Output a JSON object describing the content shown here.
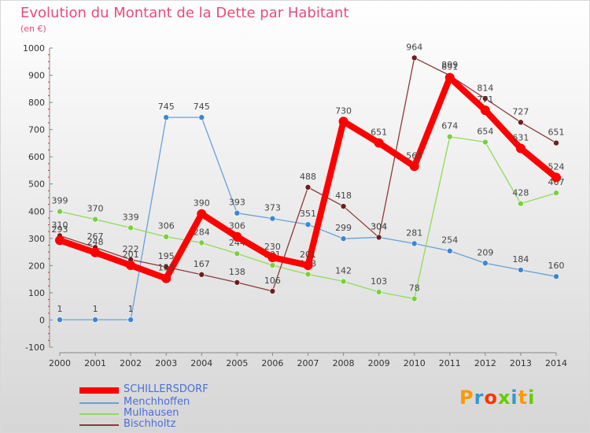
{
  "chart_title": "Evolution du Montant de la Dette par Habitant",
  "chart_unit": "(en €)",
  "brand": {
    "logo_text": "Proxiti",
    "colors": [
      "#ff9900",
      "#3399cc",
      "#ff3300",
      "#66cc00",
      "#3399cc",
      "#ff9900",
      "#66cc00"
    ]
  },
  "chart_data": {
    "type": "line",
    "title": "Evolution du Montant de la Dette par Habitant",
    "ylabel": "(en €)",
    "x": [
      2000,
      2001,
      2002,
      2003,
      2004,
      2005,
      2006,
      2007,
      2008,
      2009,
      2010,
      2011,
      2012,
      2013,
      2014
    ],
    "ylim": [
      -100,
      1000
    ],
    "yticks": [
      -100,
      0,
      100,
      200,
      300,
      400,
      500,
      600,
      700,
      800,
      900,
      1000
    ],
    "grid": false,
    "legend_position": "bottom-left",
    "series": [
      {
        "name": "Menchhoffen",
        "color": "#6aa0d8",
        "values": [
          1,
          1,
          1,
          745,
          745,
          393,
          373,
          351,
          299,
          304,
          281,
          254,
          209,
          184,
          160
        ]
      },
      {
        "name": "Mulhausen",
        "color": "#8fdc5a",
        "values": [
          399,
          370,
          339,
          306,
          284,
          244,
          201,
          168,
          142,
          103,
          78,
          674,
          654,
          428,
          467
        ]
      },
      {
        "name": "Bischholtz",
        "color": "#8a3a3a",
        "values": [
          310,
          267,
          222,
          195,
          167,
          138,
          106,
          488,
          418,
          304,
          964,
          899,
          814,
          727,
          651
        ]
      },
      {
        "name": "SCHILLERSDORF",
        "color": "#ff0000",
        "values": [
          293,
          248,
          201,
          153,
          390,
          306,
          230,
          201,
          730,
          651,
          565,
          891,
          771,
          631,
          524
        ]
      }
    ]
  },
  "legend": [
    {
      "name": "SCHILLERSDORF",
      "color": "#ff0000",
      "width": 8,
      "text_color": "#4a6fd6"
    },
    {
      "name": "Menchhoffen",
      "color": "#6aa0d8",
      "width": 2,
      "text_color": "#4a6fd6"
    },
    {
      "name": "Mulhausen",
      "color": "#8fdc5a",
      "width": 2,
      "text_color": "#4a6fd6"
    },
    {
      "name": "Bischholtz",
      "color": "#8a3a3a",
      "width": 2,
      "text_color": "#4a6fd6"
    }
  ]
}
